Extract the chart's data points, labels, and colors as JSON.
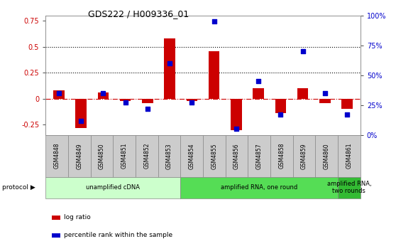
{
  "title": "GDS222 / H009336_01",
  "samples": [
    "GSM4848",
    "GSM4849",
    "GSM4850",
    "GSM4851",
    "GSM4852",
    "GSM4853",
    "GSM4854",
    "GSM4855",
    "GSM4856",
    "GSM4857",
    "GSM4858",
    "GSM4859",
    "GSM4860",
    "GSM4861"
  ],
  "log_ratio": [
    0.08,
    -0.28,
    0.06,
    -0.02,
    -0.04,
    0.58,
    -0.02,
    0.46,
    -0.3,
    0.1,
    -0.14,
    0.1,
    -0.04,
    -0.1
  ],
  "percentile": [
    0.35,
    0.12,
    0.35,
    0.27,
    0.22,
    0.6,
    0.27,
    0.95,
    0.05,
    0.45,
    0.17,
    0.7,
    0.35,
    0.17
  ],
  "bar_color": "#cc0000",
  "dot_color": "#0000cc",
  "ylim_left": [
    -0.35,
    0.8
  ],
  "ylim_right": [
    0.0,
    1.0
  ],
  "yticks_left": [
    -0.25,
    0.0,
    0.25,
    0.5,
    0.75
  ],
  "yticks_right": [
    0.0,
    0.25,
    0.5,
    0.75,
    1.0
  ],
  "ytick_labels_left": [
    "-0.25",
    "0",
    "0.25",
    "0.5",
    "0.75"
  ],
  "ytick_labels_right": [
    "0%",
    "25%",
    "50%",
    "75%",
    "100%"
  ],
  "hlines": [
    0.25,
    0.5
  ],
  "protocol_groups": [
    {
      "label": "unamplified cDNA",
      "start": 0,
      "end": 5,
      "color": "#ccffcc"
    },
    {
      "label": "amplified RNA, one round",
      "start": 6,
      "end": 12,
      "color": "#55dd55"
    },
    {
      "label": "amplified RNA,\ntwo rounds",
      "start": 13,
      "end": 13,
      "color": "#33bb33"
    }
  ],
  "legend_items": [
    {
      "label": "log ratio",
      "color": "#cc0000"
    },
    {
      "label": "percentile rank within the sample",
      "color": "#0000cc"
    }
  ],
  "background_color": "#ffffff",
  "bar_color_zero": "#cc0000",
  "sample_cell_color": "#cccccc"
}
